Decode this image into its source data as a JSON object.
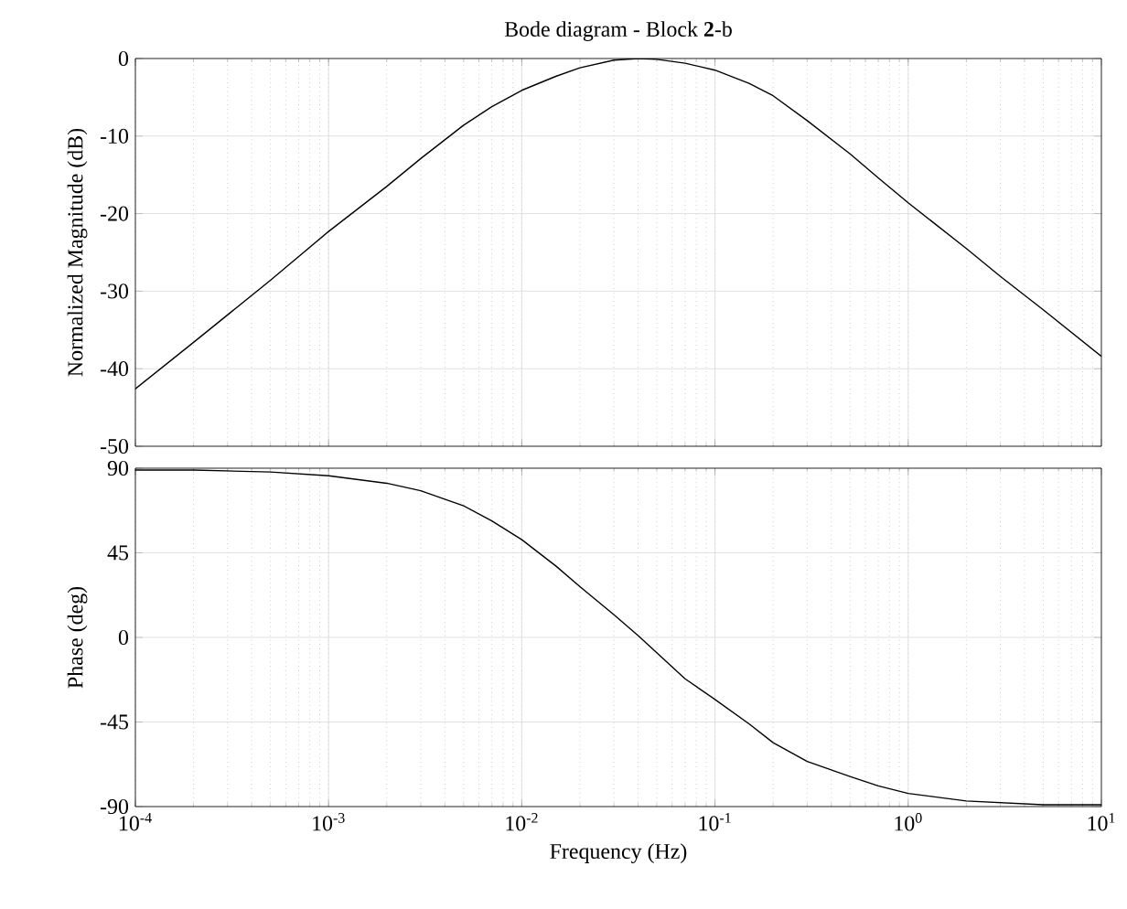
{
  "chart_data": [
    {
      "type": "line",
      "title": "Bode diagram - Block **2**-b",
      "ylabel": "Normalized Magnitude (dB)",
      "log": "x",
      "grid": true,
      "tick_labels": "y",
      "x": [
        0.0001,
        0.0002,
        0.0005,
        0.001,
        0.002,
        0.003,
        0.005,
        0.007,
        0.01,
        0.015,
        0.02,
        0.03,
        0.04,
        0.05,
        0.07,
        0.1,
        0.15,
        0.2,
        0.3,
        0.5,
        0.7,
        1,
        2,
        3,
        5,
        10
      ],
      "series": [
        {
          "color": "#000000",
          "values": [
            -42.6,
            -36.6,
            -28.6,
            -22.3,
            -16.5,
            -12.9,
            -8.6,
            -6.2,
            -4.1,
            -2.3,
            -1.2,
            -0.2,
            0,
            -0.1,
            -0.6,
            -1.5,
            -3.2,
            -4.8,
            -8,
            -12.3,
            -15.4,
            -18.6,
            -24.5,
            -28.1,
            -32.4,
            -38.4
          ]
        }
      ],
      "xlim": [
        0.0001,
        10
      ],
      "ylim": [
        -50,
        0
      ],
      "xticks": [
        {
          "value": 0.0001,
          "label": null
        },
        {
          "value": 0.001,
          "label": null
        },
        {
          "value": 0.01,
          "label": null
        },
        {
          "value": 0.1,
          "label": null
        },
        {
          "value": 1,
          "label": null
        },
        {
          "value": 10,
          "label": null
        }
      ],
      "yticks": [
        -50,
        -40,
        -30,
        -20,
        -10,
        0
      ]
    },
    {
      "type": "line",
      "xlabel": "Frequency (Hz)",
      "ylabel": "Phase (deg)",
      "log": "x",
      "grid": true,
      "x": [
        0.0001,
        0.0002,
        0.0005,
        0.001,
        0.002,
        0.003,
        0.005,
        0.007,
        0.01,
        0.015,
        0.02,
        0.03,
        0.04,
        0.07,
        0.1,
        0.15,
        0.2,
        0.3,
        0.5,
        0.7,
        1,
        2,
        5,
        10
      ],
      "series": [
        {
          "color": "#000000",
          "values": [
            89,
            89,
            88,
            86,
            82,
            78,
            70,
            62,
            52,
            38,
            27,
            12,
            1,
            -22,
            -33,
            -46,
            -56,
            -66,
            -74,
            -79,
            -83,
            -87,
            -89,
            -89
          ]
        }
      ],
      "xlim": [
        0.0001,
        10
      ],
      "ylim": [
        -90,
        90
      ],
      "xticks": [
        {
          "value": 0.0001,
          "label": "10$^{-4}$"
        },
        {
          "value": 0.001,
          "label": "10$^{-3}$"
        },
        {
          "value": 0.01,
          "label": "10$^{-2}$"
        },
        {
          "value": 0.1,
          "label": "10$^{-1}$"
        },
        {
          "value": 1,
          "label": "10$^{0}$"
        },
        {
          "value": 10,
          "label": "10$^{1}$"
        }
      ],
      "yticks": [
        -90,
        -45,
        0,
        45,
        90
      ]
    }
  ]
}
